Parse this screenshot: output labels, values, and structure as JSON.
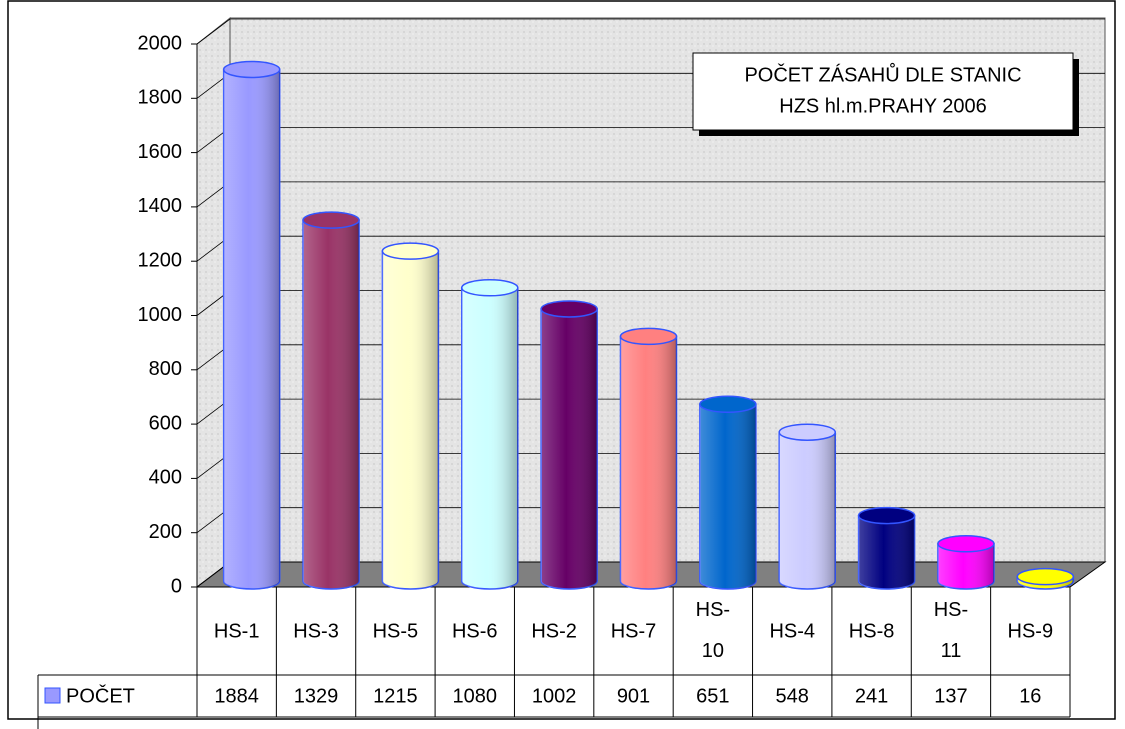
{
  "chart_data": {
    "type": "bar",
    "title": "POČET ZÁSAHŮ DLE STANIC",
    "subtitle": "HZS hl.m.PRAHY 2006",
    "categories": [
      "HS-1",
      "HS-3",
      "HS-5",
      "HS-6",
      "HS-2",
      "HS-7",
      "HS-10",
      "HS-4",
      "HS-8",
      "HS-11",
      "HS-9"
    ],
    "series": [
      {
        "name": "POČET",
        "color": "#9999ff",
        "values": [
          1884,
          1329,
          1215,
          1080,
          1002,
          901,
          651,
          548,
          241,
          137,
          16
        ],
        "colors": [
          "#9999ff",
          "#993366",
          "#ffffcc",
          "#ccffff",
          "#660066",
          "#ff8080",
          "#0066cc",
          "#ccccff",
          "#000080",
          "#ff00ff",
          "#ffff00"
        ]
      }
    ],
    "ylim": [
      0,
      2000
    ],
    "yticks": [
      0,
      200,
      400,
      600,
      800,
      1000,
      1200,
      1400,
      1600,
      1800,
      2000
    ],
    "grid": true
  }
}
